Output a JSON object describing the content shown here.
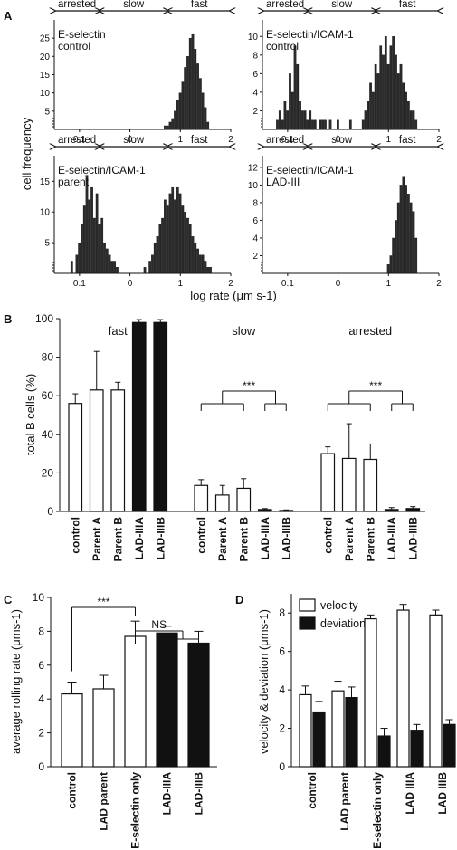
{
  "colors": {
    "dark": "#2b2b2b",
    "black": "#111111",
    "white": "#ffffff",
    "axis": "#111111"
  },
  "panels": {
    "A": {
      "label": "A",
      "ylabel": "cell frequency",
      "xlabel": "log rate (μm s-1)",
      "categories_text": [
        "arrested",
        "slow",
        "fast"
      ],
      "xticks": [
        "0.1",
        "0",
        "1",
        "2"
      ]
    },
    "B": {
      "label": "B",
      "ylabel": "total B cells (%)",
      "yticks": [
        "0",
        "20",
        "40",
        "60",
        "80",
        "100"
      ],
      "sig": "***"
    },
    "C": {
      "label": "C",
      "ylabel": "average rolling rate (μms-1)",
      "yticks": [
        "0",
        "2",
        "4",
        "6",
        "8",
        "10"
      ],
      "sig": "***",
      "ns": "NS"
    },
    "D": {
      "label": "D",
      "ylabel": "velocity & deviation (μms-1)",
      "yticks": [
        "0",
        "2",
        "4",
        "6",
        "8"
      ]
    }
  },
  "chart_data": [
    {
      "panel": "A",
      "type": "bar",
      "subtitle": [
        "E-selectin",
        "control"
      ],
      "xlim": [
        -1.5,
        2
      ],
      "ylim": [
        0,
        28
      ],
      "yticks": [
        5,
        10,
        15,
        20,
        25
      ],
      "x": [
        0.7,
        0.75,
        0.8,
        0.85,
        0.9,
        0.95,
        1.0,
        1.05,
        1.1,
        1.15,
        1.2,
        1.25,
        1.3,
        1.35,
        1.4,
        1.45,
        1.5,
        1.55
      ],
      "values": [
        1,
        1,
        2,
        3,
        5,
        8,
        10,
        13,
        17,
        20,
        25,
        26,
        22,
        18,
        14,
        10,
        6,
        2
      ]
    },
    {
      "panel": "A",
      "type": "bar",
      "subtitle": [
        "E-selectin/ICAM-1",
        "control"
      ],
      "xlim": [
        -1.5,
        2
      ],
      "ylim": [
        0,
        11
      ],
      "yticks": [
        2,
        4,
        6,
        8,
        10
      ],
      "x": [
        -1.2,
        -1.15,
        -1.1,
        -1.05,
        -1.0,
        -0.95,
        -0.9,
        -0.85,
        -0.8,
        -0.75,
        -0.7,
        -0.65,
        -0.6,
        -0.55,
        -0.5,
        -0.45,
        -0.35,
        -0.3,
        -0.25,
        -0.15,
        0.0,
        0.25,
        0.5,
        0.55,
        0.6,
        0.65,
        0.7,
        0.75,
        0.8,
        0.85,
        0.9,
        0.95,
        1.0,
        1.05,
        1.1,
        1.15,
        1.2,
        1.25,
        1.3,
        1.35,
        1.4,
        1.45,
        1.5,
        1.55
      ],
      "values": [
        1,
        2,
        1,
        3,
        2,
        6,
        4,
        9,
        7,
        3,
        2,
        2,
        1,
        2,
        1,
        1,
        1,
        1,
        1,
        1,
        1,
        1,
        1,
        2,
        3,
        5,
        4,
        7,
        6,
        9,
        8,
        10,
        7,
        9,
        10,
        8,
        6,
        7,
        5,
        4,
        3,
        2,
        2,
        1
      ]
    },
    {
      "panel": "A",
      "type": "bar",
      "subtitle": [
        "E-selectin/ICAM-1",
        "parent"
      ],
      "xlim": [
        -1.5,
        2
      ],
      "ylim": [
        0,
        18
      ],
      "yticks": [
        5,
        10,
        15
      ],
      "x": [
        -1.15,
        -1.05,
        -1.0,
        -0.95,
        -0.9,
        -0.85,
        -0.8,
        -0.75,
        -0.7,
        -0.65,
        -0.6,
        -0.55,
        -0.5,
        -0.45,
        -0.4,
        -0.35,
        -0.3,
        -0.25,
        0.3,
        0.4,
        0.45,
        0.5,
        0.55,
        0.6,
        0.65,
        0.7,
        0.75,
        0.8,
        0.85,
        0.9,
        0.95,
        1.0,
        1.05,
        1.1,
        1.15,
        1.2,
        1.25,
        1.3,
        1.35,
        1.4,
        1.45,
        1.5,
        1.55,
        1.6
      ],
      "values": [
        2,
        3,
        5,
        8,
        11,
        16,
        12,
        14,
        9,
        13,
        8,
        9,
        5,
        4,
        3,
        2,
        2,
        1,
        1,
        2,
        3,
        5,
        6,
        8,
        9,
        12,
        11,
        13,
        14,
        12,
        14,
        13,
        11,
        10,
        9,
        8,
        6,
        5,
        4,
        3,
        3,
        2,
        1,
        1
      ]
    },
    {
      "panel": "A",
      "type": "bar",
      "subtitle": [
        "E-selectin/ICAM-1",
        "LAD-III"
      ],
      "xlim": [
        -1.5,
        2
      ],
      "ylim": [
        0,
        12.5
      ],
      "yticks": [
        2,
        4,
        6,
        8,
        10,
        12
      ],
      "x": [
        1.0,
        1.05,
        1.1,
        1.15,
        1.2,
        1.25,
        1.3,
        1.35,
        1.4,
        1.45,
        1.5,
        1.55
      ],
      "values": [
        1,
        2,
        4,
        6,
        8,
        10,
        11,
        10,
        9,
        8,
        7,
        4
      ]
    },
    {
      "panel": "B",
      "type": "bar",
      "ylabel": "total B cells (%)",
      "ylim": [
        0,
        100
      ],
      "groups": [
        "fast",
        "slow",
        "arrested"
      ],
      "categories": [
        "control",
        "Parent A",
        "Parent B",
        "LAD-IIIA",
        "LAD-IIIB"
      ],
      "fill": [
        "white",
        "white",
        "white",
        "black",
        "black"
      ],
      "series": [
        {
          "group": "fast",
          "values": [
            56,
            63,
            63,
            98,
            98
          ],
          "errors": [
            5,
            20,
            4,
            1.5,
            1.5
          ]
        },
        {
          "group": "slow",
          "values": [
            13.5,
            8.5,
            12,
            1,
            0.5
          ],
          "errors": [
            3,
            5,
            5,
            0.5,
            0.3
          ]
        },
        {
          "group": "arrested",
          "values": [
            30,
            27.5,
            27,
            1,
            1.5
          ],
          "errors": [
            3.5,
            18,
            8,
            1,
            1
          ]
        }
      ]
    },
    {
      "panel": "C",
      "type": "bar",
      "ylabel": "average rolling rate (μms-1)",
      "ylim": [
        0,
        10
      ],
      "categories": [
        "control",
        "LAD parent",
        "E-selectin only",
        "LAD-IIIA",
        "LAD-IIIB"
      ],
      "fill": [
        "white",
        "white",
        "white",
        "black",
        "black"
      ],
      "values": [
        4.3,
        4.6,
        7.7,
        7.9,
        7.3
      ],
      "errors": [
        0.7,
        0.8,
        0.9,
        0.4,
        0.7
      ]
    },
    {
      "panel": "D",
      "type": "bar",
      "ylabel": "velocity & deviation (μms-1)",
      "ylim": [
        0,
        9
      ],
      "categories": [
        "control",
        "LAD parent",
        "E-selectin only",
        "LAD IIIA",
        "LAD IIIB"
      ],
      "series": [
        {
          "name": "velocity",
          "fill": "white",
          "values": [
            3.75,
            3.95,
            7.7,
            8.15,
            7.9
          ],
          "errors": [
            0.45,
            0.5,
            0.2,
            0.3,
            0.25
          ]
        },
        {
          "name": "deviation",
          "fill": "black",
          "values": [
            2.85,
            3.6,
            1.6,
            1.9,
            2.2
          ],
          "errors": [
            0.55,
            0.55,
            0.4,
            0.3,
            0.25
          ]
        }
      ]
    }
  ]
}
